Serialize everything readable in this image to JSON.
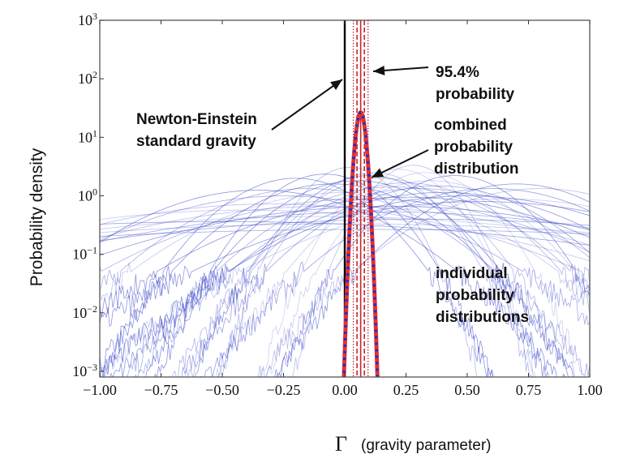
{
  "chart_data": {
    "type": "line",
    "title": "",
    "xlabel_symbol": "Γ",
    "xlabel": "(gravity parameter)",
    "ylabel": "Probability density",
    "xlim": [
      -1.0,
      1.0
    ],
    "ylim": [
      0.0008,
      1000
    ],
    "yscale": "log",
    "grid": false,
    "xticks": [
      "−1.00",
      "−0.75",
      "−0.50",
      "−0.25",
      "0.00",
      "0.25",
      "0.50",
      "0.75",
      "1.00"
    ],
    "xtick_values": [
      -1,
      -0.75,
      -0.5,
      -0.25,
      0,
      0.25,
      0.5,
      0.75,
      1
    ],
    "yticks": [
      {
        "base": "10",
        "exp": "3"
      },
      {
        "base": "10",
        "exp": "2"
      },
      {
        "base": "10",
        "exp": "1"
      },
      {
        "base": "10",
        "exp": "0"
      },
      {
        "base": "10",
        "exp": "−1"
      },
      {
        "base": "10",
        "exp": "−2"
      },
      {
        "base": "10",
        "exp": "−3"
      }
    ],
    "ytick_values": [
      1000,
      100,
      10,
      1,
      0.1,
      0.01,
      0.001
    ],
    "newton_einstein_line": {
      "x": 0.0,
      "color": "#000000"
    },
    "combined": {
      "mean": 0.065,
      "sigma": 0.015,
      "peak": 26.6,
      "color_line": "#e8302a",
      "color_dots": "#1a2fd6"
    },
    "interval_lines": {
      "center": 0.065,
      "dashed": [
        0.05,
        0.08
      ],
      "dotted_95_4": [
        0.035,
        0.095
      ],
      "color": "#c0282a"
    },
    "individual": {
      "color": "#3a48c8",
      "distributions_mean_sigma": [
        [
          0.1,
          0.18
        ],
        [
          0.05,
          0.22
        ],
        [
          -0.05,
          0.25
        ],
        [
          0.15,
          0.2
        ],
        [
          0.2,
          0.28
        ],
        [
          -0.15,
          0.3
        ],
        [
          0.25,
          0.24
        ],
        [
          0.0,
          0.35
        ],
        [
          0.3,
          0.3
        ],
        [
          -0.25,
          0.4
        ],
        [
          0.12,
          0.16
        ],
        [
          0.35,
          0.22
        ],
        [
          0.4,
          0.35
        ],
        [
          -0.3,
          0.55
        ],
        [
          0.08,
          0.45
        ],
        [
          0.18,
          0.6
        ],
        [
          -0.4,
          0.7
        ],
        [
          0.22,
          0.14
        ],
        [
          0.5,
          0.4
        ],
        [
          0.6,
          0.3
        ],
        [
          0.7,
          0.25
        ],
        [
          -0.1,
          0.9
        ],
        [
          0.0,
          1.2
        ],
        [
          0.3,
          1.0
        ],
        [
          -0.2,
          0.2
        ],
        [
          0.28,
          0.12
        ],
        [
          0.45,
          0.18
        ],
        [
          0.55,
          0.5
        ],
        [
          -0.05,
          0.6
        ],
        [
          0.15,
          0.75
        ],
        [
          0.02,
          0.13
        ],
        [
          0.33,
          0.16
        ],
        [
          -0.35,
          0.32
        ],
        [
          0.65,
          0.45
        ],
        [
          0.8,
          0.3
        ],
        [
          0.1,
          1.5
        ],
        [
          -0.5,
          1.1
        ],
        [
          0.25,
          0.42
        ],
        [
          0.38,
          0.27
        ],
        [
          -0.08,
          0.17
        ]
      ]
    },
    "annotations": [
      {
        "id": "interval",
        "lines": [
          "95.4%",
          "probability"
        ]
      },
      {
        "id": "newton",
        "lines": [
          "Newton-Einstein",
          "standard gravity"
        ]
      },
      {
        "id": "combined",
        "lines": [
          "combined",
          "probability",
          "distribution"
        ]
      },
      {
        "id": "individual",
        "lines": [
          "individual",
          "probability",
          "distributions"
        ]
      }
    ]
  }
}
